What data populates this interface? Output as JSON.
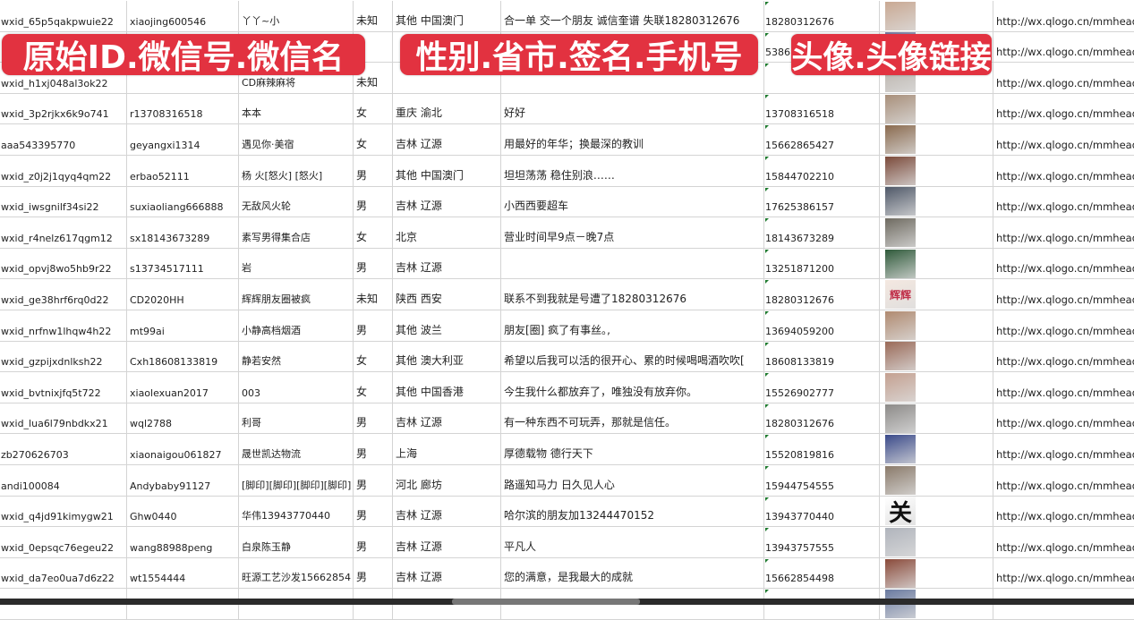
{
  "overlays": {
    "label1": "原始ID.微信号.微信名",
    "label2": "性别.省市.签名.手机号",
    "label3": "头像.头像链接",
    "color": "#e23240"
  },
  "rows": [
    {
      "id": "wxid_65p5qakpwuie22",
      "wechat": "xiaojing600546",
      "name": "丫丫~小",
      "gender": "未知",
      "region": "其他 中国澳门",
      "signature": "合一单 交一个朋友 诚信奎谱 失联18280312676",
      "phone": "18280312676",
      "avatar": "#c9a892",
      "url": "http://wx.qlogo.cn/mmhead"
    },
    {
      "id": "",
      "wechat": "",
      "name": "",
      "gender": "",
      "region": "",
      "signature": "",
      "phone": "5386",
      "avatar": "#7a7fa8",
      "url": "http://wx.qlogo.cn/mmhead"
    },
    {
      "id": "wxid_h1xj048al3ok22",
      "wechat": "",
      "name": "CD麻辣麻将",
      "gender": "未知",
      "region": "",
      "signature": "",
      "phone": "",
      "avatar": "#b8b0a8",
      "url": "http://wx.qlogo.cn/mmhead"
    },
    {
      "id": "wxid_3p2rjkx6k9o741",
      "wechat": "r13708316518",
      "name": "本本",
      "gender": "女",
      "region": "重庆 渝北",
      "signature": "好好",
      "phone": "13708316518",
      "avatar": "#a88f7a",
      "url": "http://wx.qlogo.cn/mmhead"
    },
    {
      "id": "aaa543395770",
      "wechat": "geyangxi1314",
      "name": "遇见你·美宿",
      "gender": "女",
      "region": "吉林 辽源",
      "signature": "用最好的年华；换最深的教训",
      "phone": "15662865427",
      "avatar": "#8a6a4e",
      "url": "http://wx.qlogo.cn/mmhead"
    },
    {
      "id": "wxid_z0j2j1qyq4qm22",
      "wechat": "erbao52111",
      "name": "杨 火[怒火] [怒火]",
      "gender": "男",
      "region": "其他 中国澳门",
      "signature": "坦坦荡荡 稳住别浪……",
      "phone": "15844702210",
      "avatar": "#7b4a3a",
      "url": "http://wx.qlogo.cn/mmhead"
    },
    {
      "id": "wxid_iwsgnilf34si22",
      "wechat": "suxiaoliang666888",
      "name": "无敌风火轮",
      "gender": "男",
      "region": "吉林 辽源",
      "signature": "小西西要超车",
      "phone": "17625386157",
      "avatar": "#4f5868",
      "url": "http://wx.qlogo.cn/mmhead"
    },
    {
      "id": "wxid_r4nelz617qgm12",
      "wechat": "sx18143673289",
      "name": "素写男得集合店",
      "gender": "女",
      "region": "北京",
      "signature": "营业时间早9点－晚7点",
      "phone": "18143673289",
      "avatar": "#6e6a60",
      "url": "http://wx.qlogo.cn/mmhead"
    },
    {
      "id": "wxid_opvj8wo5hb9r22",
      "wechat": "s13734517111",
      "name": "岩",
      "gender": "男",
      "region": "吉林 辽源",
      "signature": "",
      "phone": "13251871200",
      "avatar": "#2f5a3a",
      "url": "http://wx.qlogo.cn/mmhead"
    },
    {
      "id": "wxid_ge38hrf6rq0d22",
      "wechat": "CD2020HH",
      "name": "辉辉朋友圈被疯",
      "gender": "未知",
      "region": "陕西 西安",
      "signature": "联系不到我就是号遭了18280312676",
      "phone": "18280312676",
      "avatar": "#f4e8e0",
      "avatar_text": "辉辉",
      "url": "http://wx.qlogo.cn/mmhead"
    },
    {
      "id": "wxid_nrfnw1lhqw4h22",
      "wechat": "mt99ai",
      "name": "小静高档烟酒",
      "gender": "男",
      "region": "其他 波兰",
      "signature": "朋友[圈] 疯了有事丝｡,",
      "phone": "13694059200",
      "avatar": "#b08a70",
      "url": "http://wx.qlogo.cn/mmhead"
    },
    {
      "id": "wxid_gzpijxdnlksh22",
      "wechat": "Cxh18608133819",
      "name": "静若安然",
      "gender": "女",
      "region": "其他 澳大利亚",
      "signature": "希望以后我可以活的很开心、累的时候喝喝酒吹吹[",
      "phone": "18608133819",
      "avatar": "#9a6a58",
      "url": "http://wx.qlogo.cn/mmhead"
    },
    {
      "id": "wxid_bvtnixjfq5t722",
      "wechat": "xiaolexuan2017",
      "name": "003",
      "gender": "女",
      "region": "其他 中国香港",
      "signature": "今生我什么都放弃了，唯独没有放弃你。",
      "phone": "15526902777",
      "avatar": "#c4a090",
      "url": "http://wx.qlogo.cn/mmhead"
    },
    {
      "id": "wxid_lua6l79nbdkx21",
      "wechat": "wql2788",
      "name": "利哥",
      "gender": "男",
      "region": "吉林 辽源",
      "signature": "有一种东西不可玩弄，那就是信任。",
      "phone": "18280312676",
      "avatar": "#8c8a88",
      "url": "http://wx.qlogo.cn/mmhead"
    },
    {
      "id": "zb270626703",
      "wechat": "xiaonaigou061827",
      "name": "晟世凯达物流",
      "gender": "男",
      "region": "上海",
      "signature": "厚德载物 德行天下",
      "phone": "15520819816",
      "avatar": "#3a4a8a",
      "url": "http://wx.qlogo.cn/mmhead"
    },
    {
      "id": "andi100084",
      "wechat": "Andybaby91127",
      "name": "[脚印][脚印][脚印][脚印]",
      "gender": "男",
      "region": "河北 廊坊",
      "signature": "路遥知马力 日久见人心",
      "phone": "15944754555",
      "avatar": "#8a7a6a",
      "url": "http://wx.qlogo.cn/mmhead"
    },
    {
      "id": "wxid_q4jd91kimygw21",
      "wechat": "Ghw0440",
      "name": "华伟13943770440",
      "gender": "男",
      "region": "吉林 辽源",
      "signature": "哈尔滨的朋友加13244470152",
      "phone": "13943770440",
      "avatar": "#ffffff",
      "avatar_text": "关",
      "url": "http://wx.qlogo.cn/mmhead"
    },
    {
      "id": "wxid_0epsqc76egeu22",
      "wechat": "wang88988peng",
      "name": "白泉陈玉静",
      "gender": "男",
      "region": "吉林 辽源",
      "signature": "平凡人",
      "phone": "13943757555",
      "avatar": "#b0b4bc",
      "url": "http://wx.qlogo.cn/mmhead"
    },
    {
      "id": "wxid_da7eo0ua7d6z22",
      "wechat": "wt1554444",
      "name": "旺源工艺沙发15662854",
      "gender": "男",
      "region": "吉林 辽源",
      "signature": "您的满意，是我最大的成就",
      "phone": "15662854498",
      "avatar": "#8a4a3a",
      "url": "http://wx.qlogo.cn/mmhead"
    },
    {
      "id": "",
      "wechat": "",
      "name": "",
      "gender": "",
      "region": "",
      "signature": "",
      "phone": "",
      "avatar": "#6a7aa0",
      "url": ""
    }
  ]
}
